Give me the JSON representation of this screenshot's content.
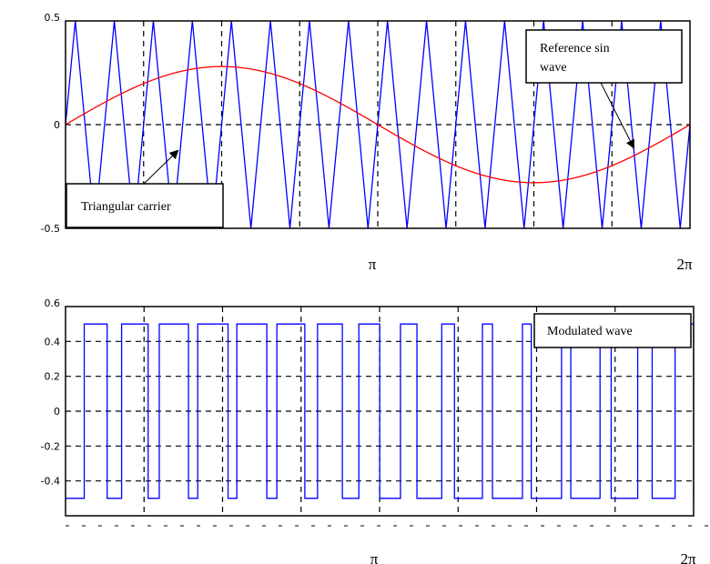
{
  "chart_data": [
    {
      "type": "line",
      "title": "",
      "xlabel": "",
      "ylabel": "",
      "xlim": [
        0,
        6.2832
      ],
      "ylim": [
        -0.5,
        0.5
      ],
      "x_ticks": [
        {
          "value": 3.1416,
          "label": "π"
        },
        {
          "value": 6.2832,
          "label": "2π"
        }
      ],
      "y_ticks": [
        {
          "value": 0.5,
          "label": "0.5"
        },
        {
          "value": 0,
          "label": "0"
        },
        {
          "value": -0.5,
          "label": "-0.5"
        }
      ],
      "grid": {
        "vertical_divisions": 8,
        "horizontal": [
          0
        ],
        "style": "dashed"
      },
      "series": [
        {
          "name": "Triangular carrier",
          "kind": "triangle",
          "amplitude": 0.5,
          "cycles": 16,
          "color": "#0000ff"
        },
        {
          "name": "Reference sin wave",
          "kind": "sine",
          "amplitude": 0.28,
          "cycles": 1,
          "color": "#ff0000"
        }
      ],
      "annotations": [
        {
          "text": "Triangular carrier",
          "arrow_to": "carrier"
        },
        {
          "text": "Reference sin\nwave",
          "line1": "Reference sin",
          "line2": "wave",
          "arrow_to": "reference"
        }
      ]
    },
    {
      "type": "line",
      "title": "",
      "xlabel": "",
      "ylabel": "",
      "xlim": [
        0,
        6.2832
      ],
      "ylim": [
        -0.6,
        0.6
      ],
      "x_ticks": [
        {
          "value": 3.1416,
          "label": "π"
        },
        {
          "value": 6.2832,
          "label": "2π"
        }
      ],
      "y_ticks": [
        {
          "value": 0.6,
          "label": "0.6"
        },
        {
          "value": 0.4,
          "label": "0.4"
        },
        {
          "value": 0.2,
          "label": "0.2"
        },
        {
          "value": 0,
          "label": "0"
        },
        {
          "value": -0.2,
          "label": "-0.2"
        },
        {
          "value": -0.4,
          "label": "-0.4"
        }
      ],
      "grid": {
        "vertical_divisions": 8,
        "horizontal": [
          0.4,
          0.2,
          0,
          -0.2,
          -0.4
        ],
        "style": "dashed"
      },
      "series": [
        {
          "name": "Modulated wave",
          "kind": "pwm",
          "levels": [
            -0.5,
            0.5
          ],
          "rule": "high when reference > carrier",
          "color": "#0000ff"
        }
      ],
      "annotations": [
        {
          "text": "Modulated wave"
        }
      ]
    }
  ]
}
